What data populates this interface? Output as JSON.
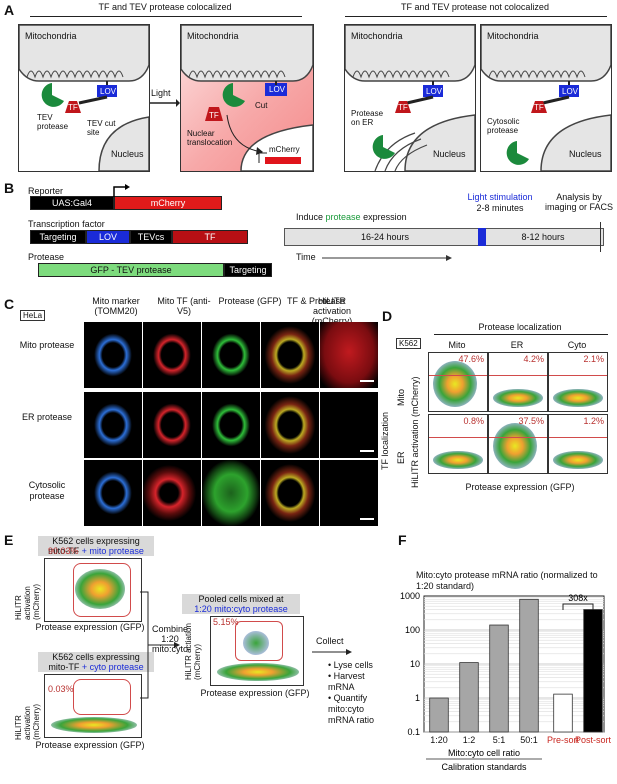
{
  "panelA": {
    "letter": "A",
    "header_left": "TF and TEV protease colocalized",
    "header_right": "TF and TEV protease not colocalized",
    "mitochondria": "Mitochondria",
    "nucleus": "Nucleus",
    "lov": "LOV",
    "tf": "TF",
    "tev_protease": "TEV protease",
    "tev_cut_site": "TEV cut site",
    "light": "Light",
    "cut": "Cut",
    "nuclear_translocation": "Nuclear translocation",
    "mcherry": "mCherry",
    "protease_on_er": "Protease on ER",
    "cytosolic_protease": "Cytosolic protease"
  },
  "panelB": {
    "letter": "B",
    "reporter": "Reporter",
    "uas": "UAS:Gal4",
    "mcherry": "mCherry",
    "transcription_factor": "Transcription factor",
    "targeting": "Targeting",
    "lov": "LOV",
    "tevcs": "TEVcs",
    "tf": "TF",
    "protease": "Protease",
    "gfp_tev": "GFP - TEV protease",
    "induce_pre": "Induce ",
    "induce_word": "protease",
    "induce_post": " expression",
    "light_stim": "Light stimulation",
    "light_min": "2-8 minutes",
    "analysis": "Analysis by imaging or FACS",
    "hours1": "16-24 hours",
    "hours2": "8-12 hours",
    "time": "Time"
  },
  "panelC": {
    "letter": "C",
    "hela": "HeLa",
    "cols": [
      "Mito marker (TOMM20)",
      "Mito TF (anti-V5)",
      "Protease (GFP)",
      "TF & Protease",
      "HiLITR activation (mCherry)"
    ],
    "rows": [
      "Mito protease",
      "ER protease",
      "Cytosolic protease"
    ]
  },
  "panelD": {
    "letter": "D",
    "k562": "K562",
    "title": "Protease localization",
    "cols": [
      "Mito",
      "ER",
      "Cyto"
    ],
    "tf_localization": "TF localization",
    "rows": [
      "Mito",
      "ER"
    ],
    "ylabel": "HiLITR activation (mCherry)",
    "xlabel": "Protease expression (GFP)",
    "percents": [
      [
        "47.6%",
        "4.2%",
        "2.1%"
      ],
      [
        "0.8%",
        "37.5%",
        "1.2%"
      ]
    ]
  },
  "panelE": {
    "letter": "E",
    "top_title1": "K562 cells expressing",
    "top_title2a": "mito-TF",
    "top_title2b": " + mito protease",
    "top_pct": "90.03%",
    "bot_title1": "K562 cells expressing",
    "bot_title2a": "mito-TF",
    "bot_title2b": " + cyto protease",
    "bot_pct": "0.03%",
    "ylabel": "HiLITR activation (mCherry)",
    "ylabel2": "HiLITR actiation (mCherry)",
    "xlabel": "Protease expression (GFP)",
    "combine": "Combine 1:20 mito:cyto",
    "pooled1": "Pooled cells mixed at",
    "pooled2": "1:20 mito:cyto protease",
    "pooled_pct": "5.15%",
    "collect": "Collect",
    "steps": [
      "• Lyse cells",
      "• Harvest mRNA",
      "• Quantify mito:cyto mRNA ratio"
    ]
  },
  "chart_data": {
    "type": "bar",
    "title": "Mito:cyto protease mRNA ratio (normalized to 1:20 standard)",
    "categories": [
      "1:20",
      "1:2",
      "5:1",
      "50:1",
      "Pre-sort",
      "Post-sort"
    ],
    "values": [
      1,
      11,
      140,
      800,
      1.3,
      400
    ],
    "colors": [
      "#a6a6a6",
      "#a6a6a6",
      "#a6a6a6",
      "#a6a6a6",
      "#ffffff",
      "#000000"
    ],
    "yscale": "log",
    "ylim": [
      0.1,
      1000
    ],
    "yticks": [
      "0.1",
      "1",
      "10",
      "100",
      "1000"
    ],
    "xlabel": "Mito:cyto cell ratio",
    "xlabel2": "Calibration standards",
    "annotation": "308x",
    "letter": "F"
  }
}
